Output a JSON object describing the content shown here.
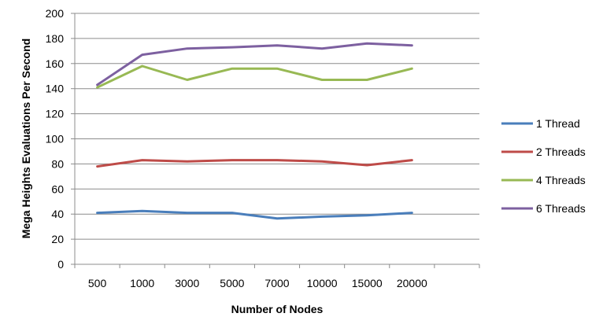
{
  "chart_data": {
    "type": "line",
    "categories": [
      "500",
      "1000",
      "3000",
      "5000",
      "7000",
      "10000",
      "15000",
      "20000"
    ],
    "xlabel": "Number of Nodes",
    "ylabel": "Mega Heights Evaluations Per Second",
    "ylim": [
      0,
      200
    ],
    "yticks": [
      0,
      20,
      40,
      60,
      80,
      100,
      120,
      140,
      160,
      180,
      200
    ],
    "grid": "horizontal",
    "legend_position": "right",
    "series": [
      {
        "name": "1 Thread",
        "color": "#4a7ebb",
        "values": [
          41,
          42.5,
          41,
          41,
          36.5,
          38,
          39,
          41
        ]
      },
      {
        "name": "2 Threads",
        "color": "#be4b48",
        "values": [
          78,
          83,
          82,
          83,
          83,
          82,
          79,
          83
        ]
      },
      {
        "name": "4 Threads",
        "color": "#98b954",
        "values": [
          141,
          158,
          147,
          156,
          156,
          147,
          147,
          156
        ]
      },
      {
        "name": "6 Threads",
        "color": "#7d60a0",
        "values": [
          143,
          167,
          172,
          173,
          174.5,
          172,
          176,
          174.5
        ]
      }
    ]
  }
}
